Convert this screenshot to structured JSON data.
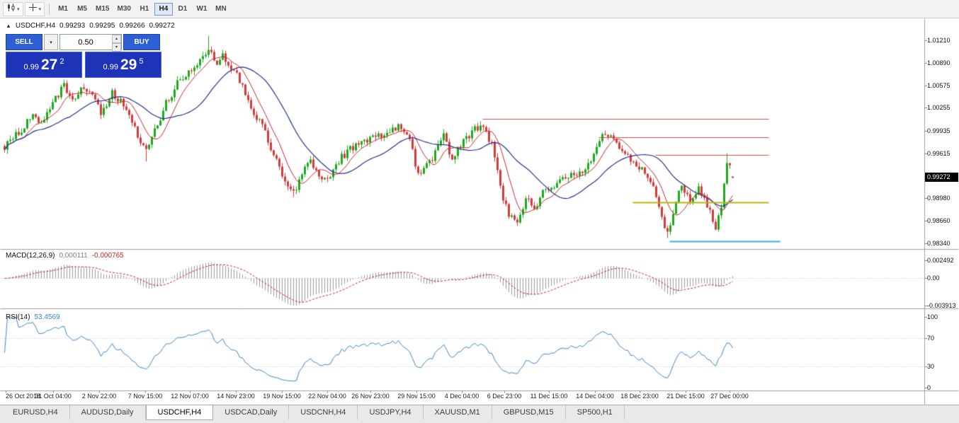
{
  "toolbar": {
    "chart_type_icon": "candlestick-chart-icon",
    "cursor_icon": "crosshair-icon",
    "timeframes": [
      "M1",
      "M5",
      "M15",
      "M30",
      "H1",
      "H4",
      "D1",
      "W1",
      "MN"
    ],
    "active_timeframe": "H4"
  },
  "chart_header": {
    "symbol_period": "USDCHF,H4",
    "open": "0.99293",
    "high": "0.99295",
    "low": "0.99266",
    "close": "0.99272"
  },
  "trade_panel": {
    "sell_label": "SELL",
    "buy_label": "BUY",
    "volume": "0.50",
    "sell_price": {
      "prefix": "0.99",
      "big": "27",
      "sup": "2"
    },
    "buy_price": {
      "prefix": "0.99",
      "big": "29",
      "sup": "5"
    }
  },
  "price_axis": {
    "ticks": [
      "1.01210",
      "1.00890",
      "1.00575",
      "1.00255",
      "0.99935",
      "0.99615",
      "0.99295",
      "0.98980",
      "0.98660",
      "0.98340"
    ],
    "current": "0.99272"
  },
  "macd_panel": {
    "label": "MACD(12,26,9)",
    "main_value": "0.000111",
    "signal_value": "-0.000765",
    "scale": [
      "0.002492",
      "0.00",
      "-0.003913"
    ]
  },
  "rsi_panel": {
    "label": "RSI(14)",
    "value": "53.4569",
    "scale": [
      "100",
      "70",
      "30",
      "0"
    ]
  },
  "time_axis": [
    "26 Oct 2018",
    "31 Oct 04:00",
    "2 Nov 22:00",
    "7 Nov 15:00",
    "12 Nov 07:00",
    "14 Nov 23:00",
    "19 Nov 15:00",
    "22 Nov 04:00",
    "26 Nov 23:00",
    "29 Nov 15:00",
    "4 Dec 04:00",
    "6 Dec 23:00",
    "11 Dec 15:00",
    "14 Dec 04:00",
    "18 Dec 23:00",
    "21 Dec 15:00",
    "27 Dec 00:00"
  ],
  "tabs": {
    "items": [
      "EURUSD,H4",
      "AUDUSD,Daily",
      "USDCHF,H4",
      "USDCAD,Daily",
      "USDCNH,H4",
      "USDJPY,H4",
      "XAUUSD,M1",
      "GBPUSD,M15",
      "SP500,H1"
    ],
    "active": "USDCHF,H4"
  },
  "colors": {
    "up_candle": "#1fa81f",
    "down_candle": "#d83a3a",
    "ma_fast": "#c62828",
    "ma_slow": "#27348b",
    "macd_hist": "#9a9a9a",
    "macd_signal": "#c62828",
    "rsi_line": "#3d85c8",
    "level_red": "#e04545",
    "level_yellow": "#b5b513",
    "level_blue": "#3aabdf",
    "badge_bg": "#000000",
    "accent_blue": "#2f5fd4",
    "panel_blue": "#1e34b8"
  },
  "chart_data": {
    "type": "candlestick",
    "symbol": "USDCHF",
    "timeframe": "H4",
    "x_range": {
      "start": "26 Oct 2018",
      "end": "27 Dec 2018"
    },
    "y_axis": {
      "min": 0.9834,
      "max": 1.0121
    },
    "candle_count": 258,
    "last_ohlc": {
      "open": 0.99293,
      "high": 0.99295,
      "low": 0.99266,
      "close": 0.99272
    },
    "price_path_anchors": [
      [
        0,
        0.9972
      ],
      [
        5,
        0.9992
      ],
      [
        10,
        1.0013
      ],
      [
        13,
        1.0002
      ],
      [
        17,
        1.0035
      ],
      [
        21,
        1.0057
      ],
      [
        24,
        1.0035
      ],
      [
        28,
        1.0056
      ],
      [
        31,
        1.0042
      ],
      [
        34,
        1.0018
      ],
      [
        38,
        1.0046
      ],
      [
        43,
        1.0025
      ],
      [
        48,
        0.9978
      ],
      [
        50,
        0.9968
      ],
      [
        53,
        0.9992
      ],
      [
        57,
        1.0032
      ],
      [
        61,
        1.006
      ],
      [
        65,
        1.0075
      ],
      [
        69,
        1.0092
      ],
      [
        72,
        1.0112
      ],
      [
        74,
        1.0088
      ],
      [
        77,
        1.0098
      ],
      [
        80,
        1.0085
      ],
      [
        84,
        1.0058
      ],
      [
        88,
        1.002
      ],
      [
        92,
        0.9992
      ],
      [
        96,
        0.995
      ],
      [
        100,
        0.9912
      ],
      [
        102,
        0.9904
      ],
      [
        105,
        0.9932
      ],
      [
        108,
        0.9952
      ],
      [
        111,
        0.9928
      ],
      [
        114,
        0.9922
      ],
      [
        118,
        0.9952
      ],
      [
        122,
        0.9968
      ],
      [
        127,
        0.998
      ],
      [
        132,
        0.9987
      ],
      [
        137,
        0.9994
      ],
      [
        140,
        1.0001
      ],
      [
        143,
        0.9978
      ],
      [
        146,
        0.9932
      ],
      [
        149,
        0.9945
      ],
      [
        152,
        0.9962
      ],
      [
        155,
        0.9988
      ],
      [
        158,
        0.9952
      ],
      [
        162,
        0.998
      ],
      [
        166,
        0.9996
      ],
      [
        169,
        1.0
      ],
      [
        172,
        0.9975
      ],
      [
        175,
        0.9912
      ],
      [
        178,
        0.9876
      ],
      [
        181,
        0.9868
      ],
      [
        184,
        0.9898
      ],
      [
        187,
        0.9882
      ],
      [
        190,
        0.9905
      ],
      [
        194,
        0.9918
      ],
      [
        198,
        0.993
      ],
      [
        202,
        0.9928
      ],
      [
        206,
        0.9945
      ],
      [
        209,
        0.9972
      ],
      [
        212,
        0.999
      ],
      [
        215,
        0.9978
      ],
      [
        218,
        0.9962
      ],
      [
        222,
        0.9948
      ],
      [
        226,
        0.9938
      ],
      [
        229,
        0.9912
      ],
      [
        232,
        0.9868
      ],
      [
        234,
        0.9846
      ],
      [
        236,
        0.988
      ],
      [
        239,
        0.9916
      ],
      [
        242,
        0.9896
      ],
      [
        245,
        0.9912
      ],
      [
        248,
        0.9886
      ],
      [
        251,
        0.9858
      ],
      [
        253,
        0.9882
      ],
      [
        255,
        0.9952
      ],
      [
        257,
        0.9929
      ]
    ],
    "wick_overrides": [
      [
        72,
        "high",
        1.01275
      ],
      [
        50,
        "low",
        0.995
      ],
      [
        102,
        "low",
        0.99005
      ],
      [
        181,
        "low",
        0.9865
      ],
      [
        212,
        "high",
        0.9994
      ],
      [
        234,
        "low",
        0.98425
      ],
      [
        251,
        "low",
        0.9853
      ],
      [
        255,
        "high",
        0.9962
      ]
    ],
    "moving_averages": [
      {
        "name": "fast",
        "type": "sma",
        "period": 8,
        "color_key": "ma_fast"
      },
      {
        "name": "slow",
        "type": "sma",
        "period": 24,
        "color_key": "ma_slow"
      }
    ],
    "levels": [
      {
        "kind": "resistance",
        "price": 1.001,
        "from_index": 169,
        "to_index": 270,
        "color_key": "level_red",
        "width": 1
      },
      {
        "kind": "resistance",
        "price": 0.9984,
        "from_index": 210,
        "to_index": 270,
        "color_key": "level_red",
        "width": 1
      },
      {
        "kind": "resistance",
        "price": 0.9959,
        "from_index": 230,
        "to_index": 270,
        "color_key": "level_red",
        "width": 1
      },
      {
        "kind": "support",
        "price": 0.9892,
        "from_index": 222,
        "to_index": 270,
        "color_key": "level_yellow",
        "width": 2
      },
      {
        "kind": "support",
        "price": 0.9837,
        "from_index": 235,
        "to_index": 274,
        "color_key": "level_blue",
        "width": 2
      }
    ],
    "indicators": [
      {
        "name": "MACD",
        "params": [
          12,
          26,
          9
        ],
        "current": [
          0.000111,
          -0.000765
        ],
        "scale_max": 0.002492,
        "scale_min": -0.003913
      },
      {
        "name": "RSI",
        "params": [
          14
        ],
        "current": 53.4569,
        "levels": [
          30,
          70
        ]
      }
    ]
  }
}
